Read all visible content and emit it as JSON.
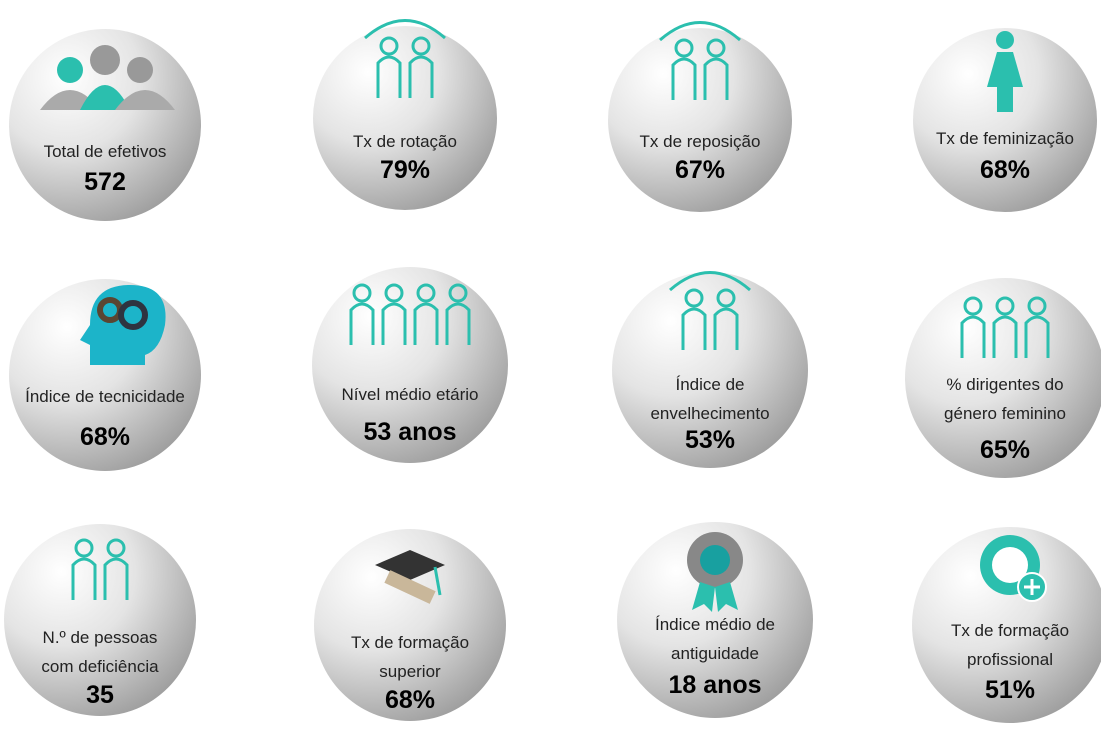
{
  "indicators": [
    {
      "label": [
        "Total de efetivos"
      ],
      "value": "572"
    },
    {
      "label": [
        "Tx de rotação"
      ],
      "value": "79%"
    },
    {
      "label": [
        "Tx de reposição"
      ],
      "value": "67%"
    },
    {
      "label": [
        "Tx de feminização"
      ],
      "value": "68%"
    },
    {
      "label": [
        "Índice de tecnicidade"
      ],
      "value": "68%"
    },
    {
      "label": [
        "Nível médio etário"
      ],
      "value": "53 anos"
    },
    {
      "label": [
        "Índice de",
        "envelhecimento"
      ],
      "value": "53%"
    },
    {
      "label": [
        "% dirigentes do",
        "género feminino"
      ],
      "value": "65%"
    },
    {
      "label": [
        "N.º de pessoas",
        "com deficiência"
      ],
      "value": "35"
    },
    {
      "label": [
        "Tx de formação",
        "superior"
      ],
      "value": "68%"
    },
    {
      "label": [
        "Índice médio de",
        "antiguidade"
      ],
      "value": "18 anos"
    },
    {
      "label": [
        "Tx de formação",
        "profissional"
      ],
      "value": "51%"
    }
  ]
}
